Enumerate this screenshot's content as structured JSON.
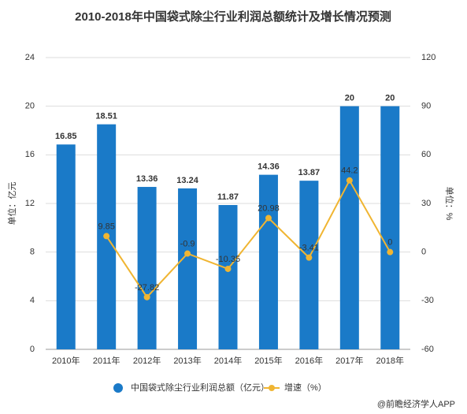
{
  "chart_data": {
    "type": "bar",
    "title": "2010-2018年中国袋式除尘行业利润总额统计及增长情况预测",
    "categories": [
      "2010年",
      "2011年",
      "2012年",
      "2013年",
      "2014年",
      "2015年",
      "2016年",
      "2017年",
      "2018年"
    ],
    "series": [
      {
        "name": "中国袋式除尘行业利润总额（亿元）",
        "type": "bar",
        "color": "#1a7ac8",
        "values": [
          16.85,
          18.51,
          13.36,
          13.24,
          11.87,
          14.36,
          13.87,
          20,
          20
        ]
      },
      {
        "name": "增速（%）",
        "type": "line",
        "axis": "y2",
        "color": "#f0b532",
        "values": [
          null,
          9.85,
          -27.82,
          -0.9,
          -10.35,
          20.98,
          -3.41,
          44.2,
          0
        ]
      }
    ],
    "ylabel": "单位：亿元",
    "y2label": "单位：%",
    "ylim": [
      0,
      24
    ],
    "yticks": [
      0,
      4,
      8,
      12,
      16,
      20,
      24
    ],
    "y2lim": [
      -60,
      120
    ],
    "y2ticks": [
      -60,
      -30,
      0,
      30,
      60,
      90,
      120
    ],
    "grid": true,
    "source": "@前瞻经济学人APP"
  }
}
